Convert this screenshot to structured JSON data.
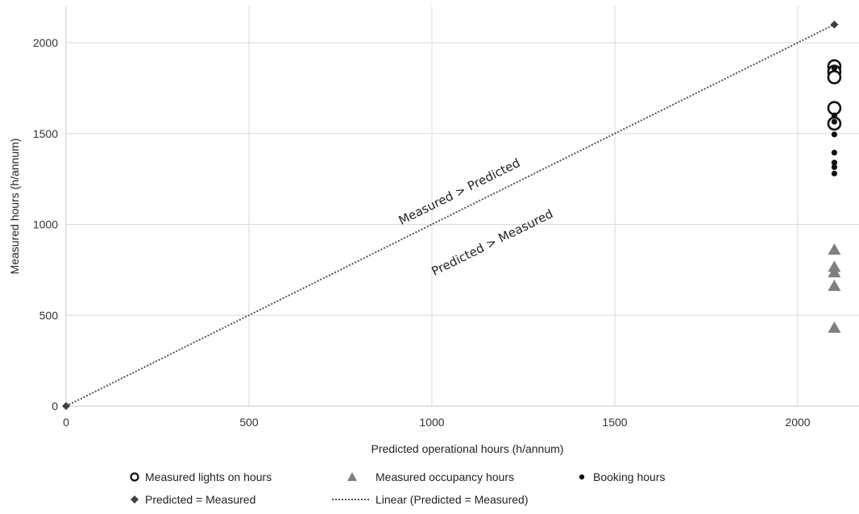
{
  "chart_data": {
    "type": "scatter",
    "xlabel": "Predicted operational hours (h/annum)",
    "ylabel": "Measured hours (h/annum)",
    "xlim": [
      0,
      2150
    ],
    "ylim": [
      0,
      2200
    ],
    "xticks": [
      0,
      500,
      1000,
      1500,
      2000
    ],
    "yticks": [
      0,
      500,
      1000,
      1500,
      2000
    ],
    "grid": true,
    "legend_position": "bottom",
    "series": [
      {
        "name": "Measured lights on hours",
        "marker": "open-circle",
        "color": "#111111",
        "points": [
          {
            "x": 2100,
            "y": 1870
          },
          {
            "x": 2100,
            "y": 1840
          },
          {
            "x": 2100,
            "y": 1810
          },
          {
            "x": 2100,
            "y": 1640
          },
          {
            "x": 2100,
            "y": 1555
          }
        ]
      },
      {
        "name": "Measured occupancy hours",
        "marker": "triangle",
        "color": "#7f7f7f",
        "points": [
          {
            "x": 2100,
            "y": 860
          },
          {
            "x": 2100,
            "y": 765
          },
          {
            "x": 2100,
            "y": 735
          },
          {
            "x": 2100,
            "y": 660
          },
          {
            "x": 2100,
            "y": 430
          }
        ]
      },
      {
        "name": "Booking hours",
        "marker": "filled-circle",
        "color": "#111111",
        "points": [
          {
            "x": 2100,
            "y": 1860
          },
          {
            "x": 2100,
            "y": 1600
          },
          {
            "x": 2100,
            "y": 1565
          },
          {
            "x": 2100,
            "y": 1495
          },
          {
            "x": 2100,
            "y": 1395
          },
          {
            "x": 2100,
            "y": 1340
          },
          {
            "x": 2100,
            "y": 1315
          },
          {
            "x": 2100,
            "y": 1280
          }
        ]
      },
      {
        "name": "Predicted = Measured",
        "marker": "diamond",
        "color": "#404040",
        "points": [
          {
            "x": 0,
            "y": 0
          },
          {
            "x": 2100,
            "y": 2100
          }
        ]
      }
    ],
    "trendline": {
      "name": "Linear (Predicted = Measured)",
      "style": "dotted",
      "color": "#44546a",
      "from": {
        "x": 0,
        "y": 0
      },
      "to": {
        "x": 2100,
        "y": 2100
      }
    },
    "annotations": [
      {
        "text": "Measured > Predicted",
        "x": 1080,
        "y": 1160
      },
      {
        "text": "Predicted > Measured",
        "x": 1170,
        "y": 880
      }
    ]
  }
}
